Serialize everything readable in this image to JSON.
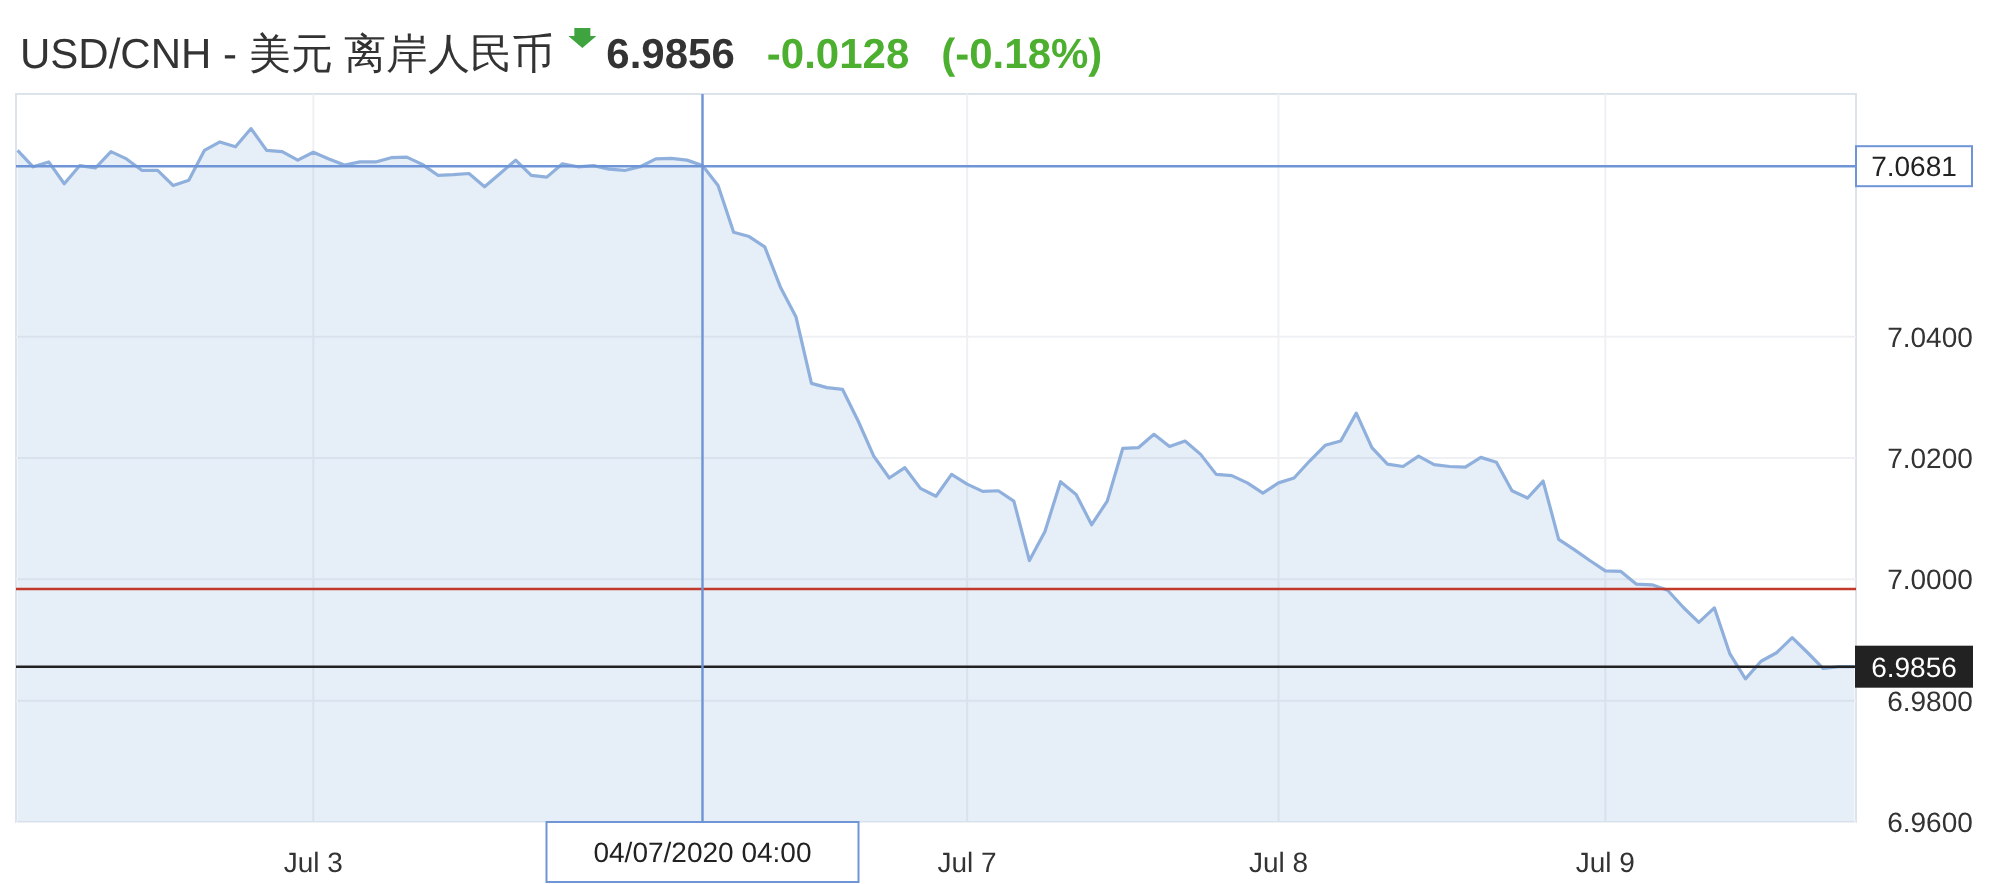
{
  "chart_data": {
    "type": "area",
    "title": "USD/CNH - 美元 离岸人民币",
    "annotations": [
      "6.9856",
      "-0.0128",
      "(-0.18%)"
    ],
    "categories": [
      null,
      null,
      null,
      null,
      null,
      null,
      null,
      null,
      null,
      null,
      null,
      null,
      null,
      null,
      null,
      null,
      null,
      null,
      null,
      "Jul 3",
      null,
      null,
      null,
      null,
      null,
      null,
      null,
      null,
      null,
      null,
      null,
      null,
      null,
      null,
      null,
      null,
      null,
      null,
      null,
      null,
      null,
      null,
      null,
      null,
      "04/07/2020 04:00",
      null,
      null,
      null,
      null,
      null,
      null,
      null,
      null,
      null,
      null,
      null,
      null,
      null,
      null,
      null,
      null,
      "Jul 7",
      null,
      null,
      null,
      null,
      null,
      null,
      null,
      null,
      null,
      null,
      null,
      null,
      null,
      null,
      null,
      null,
      null,
      null,
      null,
      "Jul 8",
      null,
      null,
      null,
      null,
      null,
      null,
      null,
      null,
      null,
      null,
      null,
      null,
      null,
      null,
      null,
      null,
      null,
      null,
      null,
      null,
      "Jul 9",
      null,
      null,
      null,
      null,
      null,
      null,
      null,
      null,
      null,
      null,
      null,
      null,
      null,
      null,
      null,
      null
    ],
    "series": [
      {
        "color": "#8fb0dc",
        "values": [
          7.0707,
          7.068,
          7.0688,
          7.0652,
          7.0682,
          7.0678,
          7.0705,
          7.0693,
          7.0674,
          7.0674,
          7.0649,
          7.0658,
          7.0707,
          7.0721,
          7.0713,
          7.0743,
          7.0707,
          7.0705,
          7.0691,
          7.0704,
          7.0693,
          7.0683,
          7.0688,
          7.0688,
          7.0695,
          7.0696,
          7.0684,
          7.0666,
          7.0667,
          7.0669,
          7.0647,
          7.0669,
          7.0691,
          7.0666,
          7.0663,
          7.0685,
          7.068,
          7.0682,
          7.0676,
          7.0674,
          7.068,
          7.0693,
          7.0694,
          7.0691,
          7.0682,
          7.0649,
          7.0572,
          7.0565,
          7.0548,
          7.0482,
          7.0433,
          7.0323,
          7.0316,
          7.0313,
          7.0261,
          7.0203,
          7.0167,
          7.0184,
          7.015,
          7.0137,
          7.0173,
          7.0157,
          7.0145,
          7.0146,
          7.0129,
          7.0031,
          7.0079,
          7.0161,
          7.014,
          7.009,
          7.0129,
          7.0216,
          7.0217,
          7.0239,
          7.0219,
          7.0228,
          7.0206,
          7.0173,
          7.0171,
          7.0159,
          7.0142,
          7.0159,
          7.0167,
          7.0195,
          7.0221,
          7.0228,
          7.0274,
          7.0217,
          7.019,
          7.0186,
          7.0203,
          7.0189,
          7.0186,
          7.0185,
          7.0201,
          7.0193,
          7.0146,
          7.0134,
          7.0162,
          7.0066,
          7.0049,
          7.0031,
          7.0014,
          7.0013,
          6.9992,
          6.9991,
          6.9982,
          6.9954,
          6.9929,
          6.9953,
          6.9877,
          6.9836,
          6.9865,
          6.9879,
          6.9904,
          6.9879,
          6.9853,
          6.9856,
          6.9856
        ]
      }
    ],
    "ylim": [
      6.96,
      7.08
    ],
    "yticks": [
      {
        "value": 6.96,
        "label": "6.9600"
      },
      {
        "value": 6.98,
        "label": "6.9800"
      },
      {
        "value": 7.0,
        "label": "7.0000"
      },
      {
        "value": 7.02,
        "label": "7.0200"
      },
      {
        "value": 7.04,
        "label": "7.0400"
      }
    ],
    "grid": true,
    "ref_lines": [
      {
        "axis": "y",
        "value": 7.0681,
        "label": "7.0681",
        "color": "#6f95d6"
      },
      {
        "axis": "y",
        "value": 6.9984,
        "color": "#c0392b"
      },
      {
        "axis": "y",
        "value": 6.9856,
        "label": "6.9856",
        "color": "#222222"
      },
      {
        "axis": "x",
        "value": "04/07/2020 04:00",
        "color": "#6f95d6"
      }
    ]
  }
}
